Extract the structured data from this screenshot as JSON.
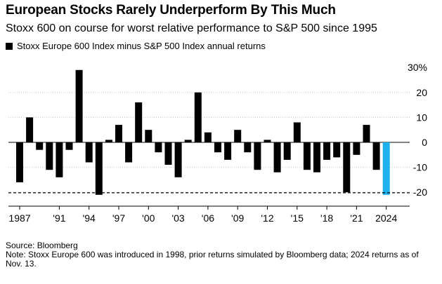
{
  "title": "European Stocks Rarely Underperform By This Much",
  "subtitle": "Stoxx 600 on course for worst relative performance to S&P 500 since 1995",
  "legend": {
    "label": "Stoxx Europe 600 Index minus S&P 500 Index annual returns"
  },
  "footer": {
    "source": "Source: Bloomberg",
    "note": "Note: Stoxx Europe 600 was introduced in 1998, prior returns simulated by Bloomberg data; 2024 returns as of Nov. 13."
  },
  "colors": {
    "bar": "#000000",
    "highlight": "#1fb0f0",
    "grid": "#cccccc",
    "reference": "#000000"
  },
  "chart_data": {
    "type": "bar",
    "categories": [
      "1987",
      "1988",
      "1989",
      "1990",
      "1991",
      "1992",
      "1993",
      "1994",
      "1995",
      "1996",
      "1997",
      "1998",
      "1999",
      "2000",
      "2001",
      "2002",
      "2003",
      "2004",
      "2005",
      "2006",
      "2007",
      "2008",
      "2009",
      "2010",
      "2011",
      "2012",
      "2013",
      "2014",
      "2015",
      "2016",
      "2017",
      "2018",
      "2019",
      "2020",
      "2021",
      "2022",
      "2023",
      "2024"
    ],
    "values": [
      -16,
      10,
      -3,
      -11,
      -14,
      -3,
      29,
      -8,
      -21,
      1,
      7,
      -8,
      16,
      5,
      -4,
      -9,
      -14,
      1,
      20,
      4,
      -4,
      -7,
      5,
      -4,
      -11,
      1,
      -12,
      -7,
      8,
      -11,
      -12,
      -7,
      -6,
      -20,
      -5,
      7,
      -11,
      -21
    ],
    "highlight_category": "2024",
    "xtick_labels": [
      {
        "category": "1987",
        "label": "1987"
      },
      {
        "category": "1991",
        "label": "'91"
      },
      {
        "category": "1994",
        "label": "'94"
      },
      {
        "category": "1997",
        "label": "'97"
      },
      {
        "category": "2000",
        "label": "'00"
      },
      {
        "category": "2003",
        "label": "'03"
      },
      {
        "category": "2006",
        "label": "'06"
      },
      {
        "category": "2009",
        "label": "'09"
      },
      {
        "category": "2012",
        "label": "'12"
      },
      {
        "category": "2015",
        "label": "'15"
      },
      {
        "category": "2018",
        "label": "'18"
      },
      {
        "category": "2021",
        "label": "'21"
      },
      {
        "category": "2024",
        "label": "2024"
      }
    ],
    "yticks": [
      {
        "value": 30,
        "label": "30%"
      },
      {
        "value": 20,
        "label": "20"
      },
      {
        "value": 10,
        "label": "10"
      },
      {
        "value": 0,
        "label": "0"
      },
      {
        "value": -10,
        "label": "-10"
      },
      {
        "value": -20,
        "label": "-20"
      }
    ],
    "ylim": [
      -25,
      32
    ],
    "reference_line": -20.2,
    "y_axis_position": "right",
    "grid": true
  }
}
